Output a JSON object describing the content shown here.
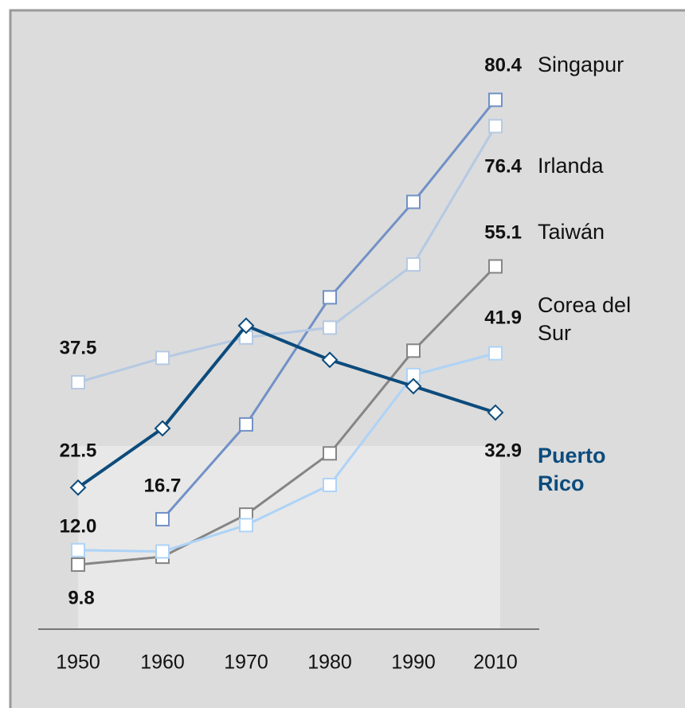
{
  "chart_data": {
    "type": "line",
    "categories": [
      "1950",
      "1960",
      "1970",
      "1980",
      "1990",
      "2010"
    ],
    "ylim": [
      0,
      90
    ],
    "series": [
      {
        "name": "Singapur",
        "color": "#7191c6",
        "marker": "square",
        "values": [
          null,
          16.7,
          31.1,
          50.4,
          64.9,
          80.4
        ],
        "value_labels": [
          null,
          "16.7",
          null,
          null,
          null,
          "80.4"
        ]
      },
      {
        "name": "Irlanda",
        "color": "#b5c9e3",
        "marker": "square",
        "values": [
          37.5,
          41.2,
          44.3,
          45.8,
          55.4,
          76.4
        ],
        "value_labels": [
          "37.5",
          null,
          null,
          null,
          null,
          "76.4"
        ]
      },
      {
        "name": "Taiwán",
        "color": "#858585",
        "marker": "square",
        "values": [
          9.8,
          11.0,
          17.4,
          26.7,
          42.3,
          55.1
        ],
        "value_labels": [
          "9.8",
          null,
          null,
          null,
          null,
          "55.1"
        ]
      },
      {
        "name": "Corea del Sur",
        "color": "#aed3f7",
        "marker": "square",
        "values": [
          12.0,
          11.8,
          15.8,
          21.9,
          38.6,
          41.9
        ],
        "value_labels": [
          "12.0",
          null,
          null,
          null,
          null,
          "41.9"
        ]
      },
      {
        "name": "Puerto Rico",
        "color": "#0c4b7c",
        "marker": "diamond",
        "values": [
          21.5,
          30.5,
          46.1,
          40.9,
          36.9,
          32.9
        ],
        "value_labels": [
          "21.5",
          null,
          null,
          null,
          null,
          "32.9"
        ]
      }
    ]
  }
}
